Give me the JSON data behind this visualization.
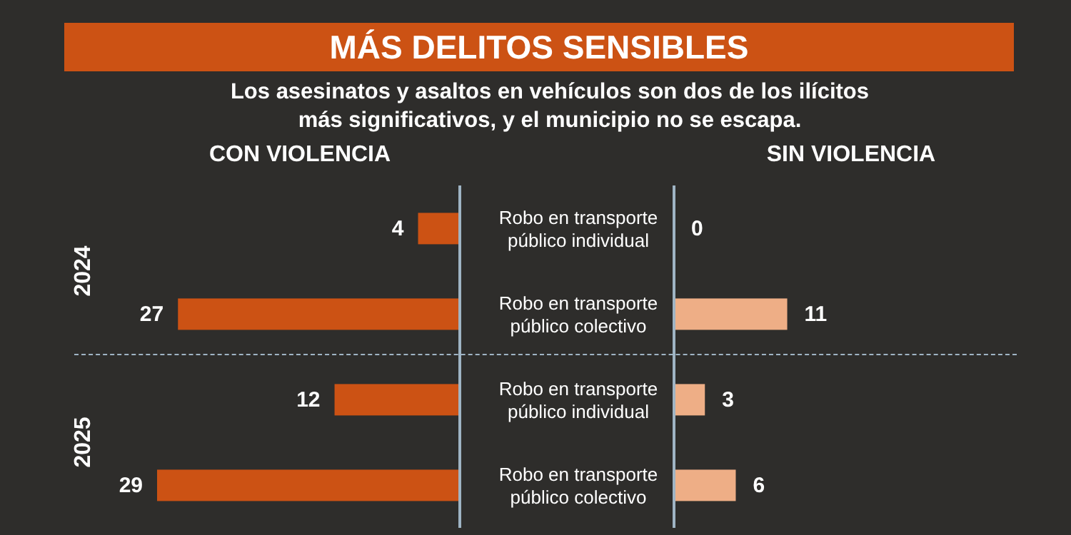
{
  "chart_data": [
    {
      "type": "bar",
      "orientation": "horizontal",
      "title": "MÁS DELITOS SENSIBLES",
      "subtitle": "Los asesinatos y asaltos en vehículos son dos de los ilícitos más significativos, y el municipio no se escapa.",
      "xlabel": "CON VIOLENCIA",
      "categories": [
        "Robo en transporte público individual",
        "Robo en transporte público colectivo",
        "Robo en transporte público individual",
        "Robo en transporte público colectivo"
      ],
      "values": [
        4,
        27,
        12,
        29
      ],
      "color": "#cc5214",
      "data_labels": true,
      "tick_labels": "y",
      "annotations": [
        "2024",
        "2025"
      ]
    },
    {
      "type": "bar",
      "orientation": "horizontal",
      "xlabel": "SIN VIOLENCIA",
      "categories": [
        null,
        null,
        null,
        null
      ],
      "values": [
        0,
        11,
        3,
        6
      ],
      "color": "#eeae86",
      "data_labels": true,
      "tick_labels": false
    }
  ]
}
